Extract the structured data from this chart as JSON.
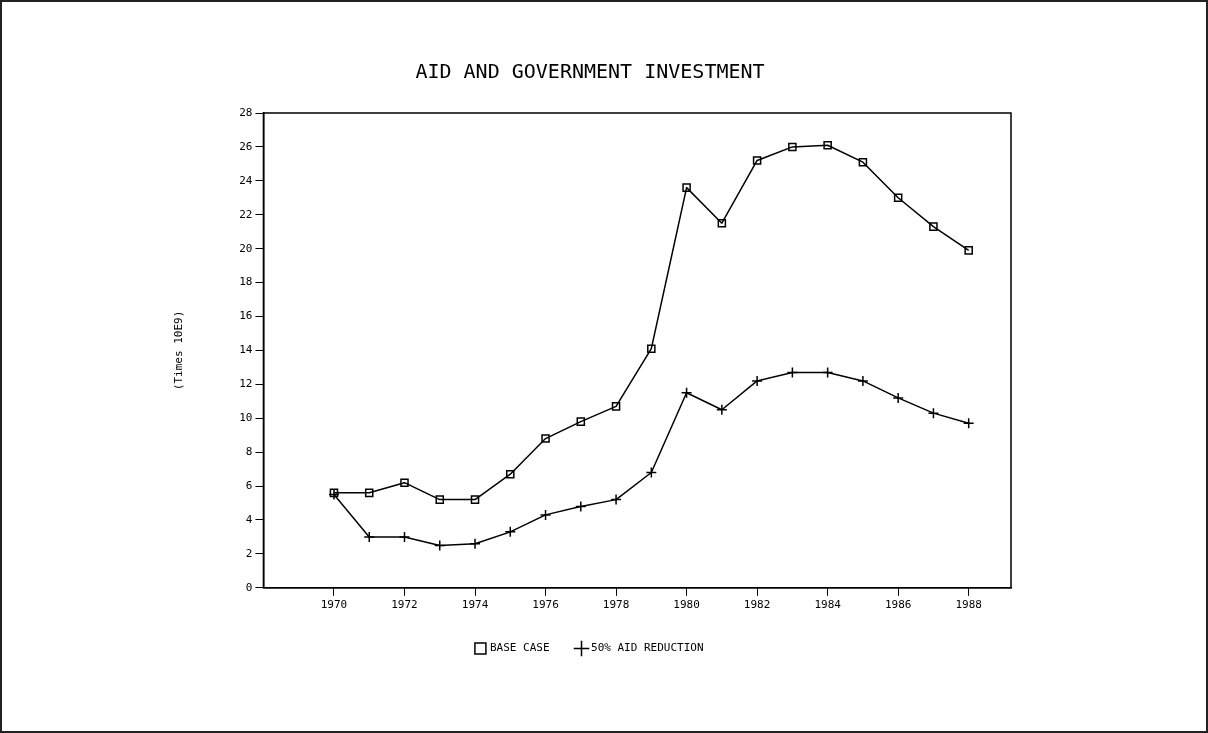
{
  "chart_data": {
    "type": "line",
    "title": "AID AND GOVERNMENT INVESTMENT",
    "ylabel": "(Times 10E9)",
    "x": [
      1970,
      1971,
      1972,
      1973,
      1974,
      1975,
      1976,
      1977,
      1978,
      1979,
      1980,
      1981,
      1982,
      1983,
      1984,
      1985,
      1986,
      1987,
      1988
    ],
    "xlim": [
      1968,
      1989.2
    ],
    "xticks": [
      1970,
      1972,
      1974,
      1976,
      1978,
      1980,
      1982,
      1984,
      1986,
      1988
    ],
    "ylim": [
      0,
      28
    ],
    "yticks": [
      0,
      2,
      4,
      6,
      8,
      10,
      12,
      14,
      16,
      18,
      20,
      22,
      24,
      26,
      28
    ],
    "series": [
      {
        "name": "BASE CASE",
        "color": "#000000",
        "marker": "square",
        "values": [
          5.6,
          5.6,
          6.2,
          5.2,
          5.2,
          6.7,
          8.8,
          9.8,
          10.7,
          14.1,
          23.6,
          21.5,
          25.2,
          26.0,
          26.1,
          25.1,
          23.0,
          21.3,
          19.9
        ]
      },
      {
        "name": "50% AID REDUCTION",
        "color": "#000000",
        "marker": "cross",
        "values": [
          5.5,
          3.0,
          3.0,
          2.5,
          2.6,
          3.3,
          4.3,
          4.8,
          5.2,
          6.8,
          11.5,
          10.5,
          12.2,
          12.7,
          12.7,
          12.2,
          11.2,
          10.3,
          9.7
        ]
      }
    ],
    "grid": false,
    "legend": "bottom",
    "line_style": "solid"
  }
}
